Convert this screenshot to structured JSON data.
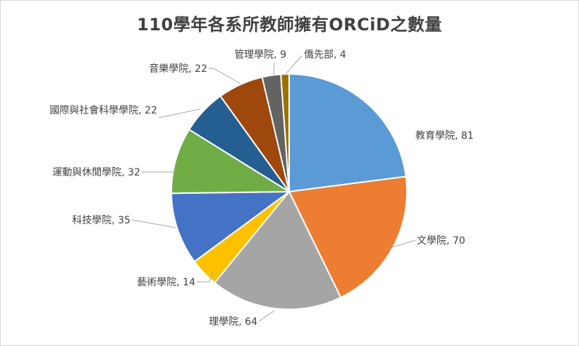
{
  "chart_data": {
    "type": "pie",
    "title": "110學年各系所教師擁有ORCiD之數量",
    "slices": [
      {
        "name": "教育學院",
        "value": 81,
        "label": "教育學院, 81",
        "color": "#5b9bd5"
      },
      {
        "name": "文學院",
        "value": 70,
        "label": "文學院, 70",
        "color": "#ed7d31"
      },
      {
        "name": "理學院",
        "value": 64,
        "label": "理學院, 64",
        "color": "#a5a5a5"
      },
      {
        "name": "藝術學院",
        "value": 14,
        "label": "藝術學院, 14",
        "color": "#ffc000"
      },
      {
        "name": "科技學院",
        "value": 35,
        "label": "科技學院, 35",
        "color": "#4472c4"
      },
      {
        "name": "運動與休閒學院",
        "value": 32,
        "label": "運動與休閒學院, 32",
        "color": "#70ad47"
      },
      {
        "name": "國際與社會科學學院",
        "value": 22,
        "label": "國際與社會科學學院, 22",
        "color": "#255e91"
      },
      {
        "name": "音樂學院",
        "value": 22,
        "label": "音樂學院, 22",
        "color": "#9e480e"
      },
      {
        "name": "管理學院",
        "value": 9,
        "label": "管理學院, 9",
        "color": "#636363"
      },
      {
        "name": "僑先部",
        "value": 4,
        "label": "僑先部, 4",
        "color": "#997300"
      }
    ],
    "start_angle": "12 o'clock",
    "direction": "clockwise",
    "legend": "none",
    "data_labels": "outside with leader lines"
  }
}
